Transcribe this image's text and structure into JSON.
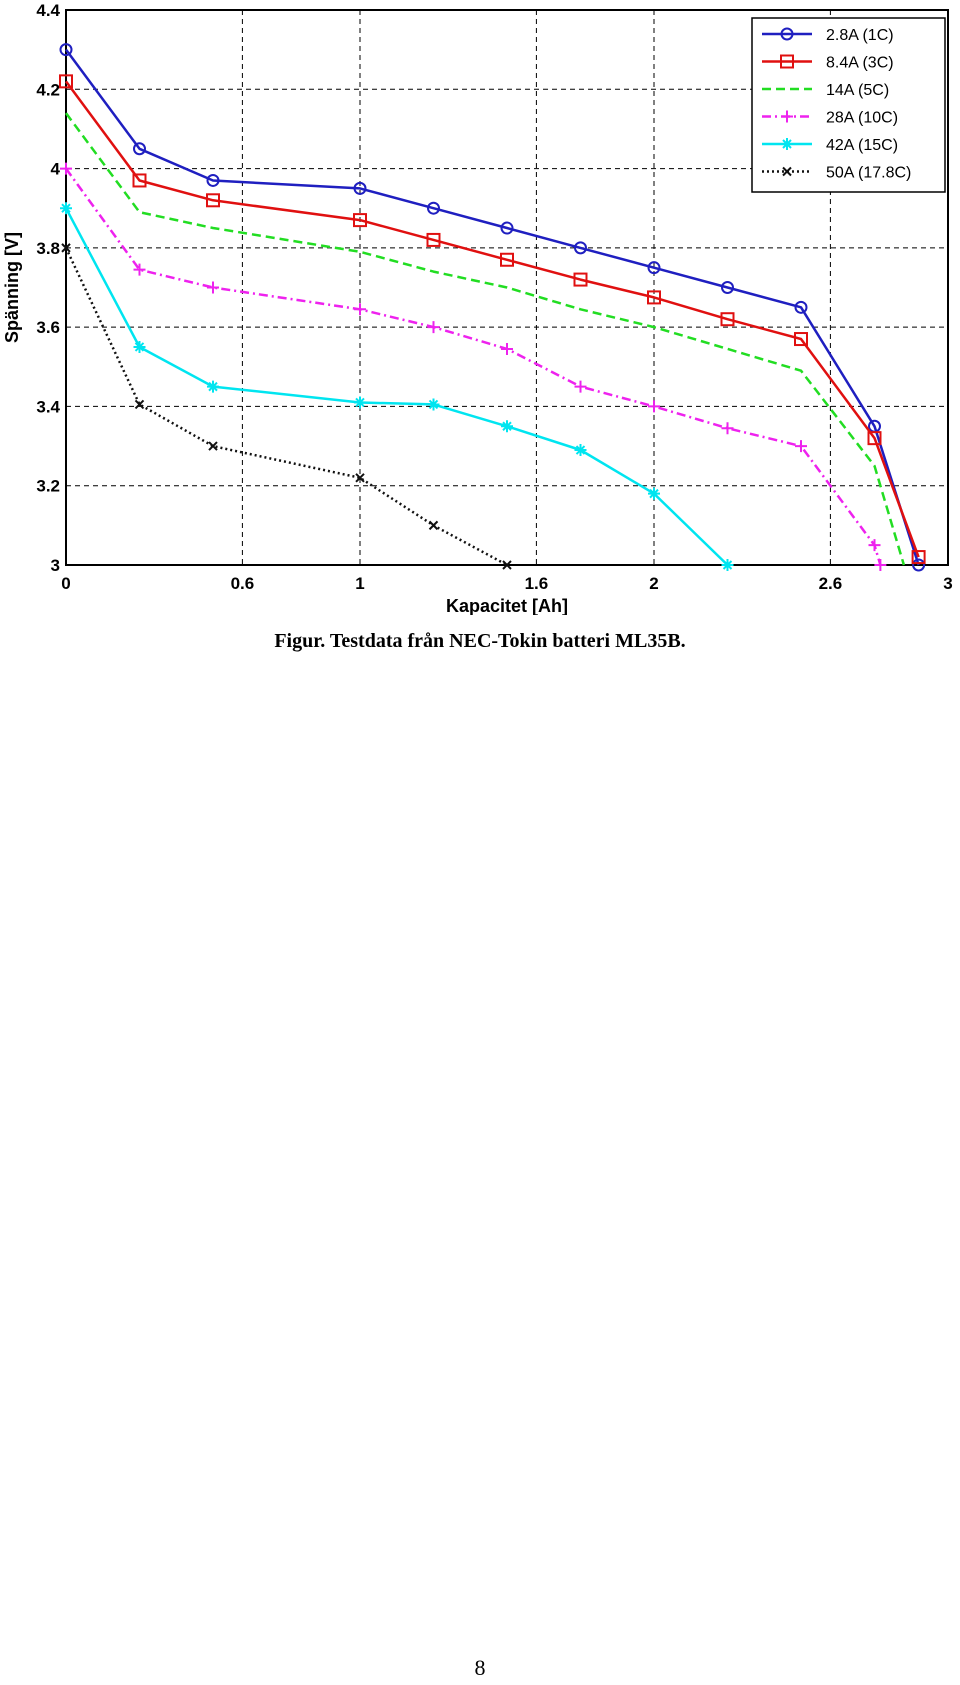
{
  "chart_data": {
    "type": "line",
    "title": "",
    "xlabel": "Kapacitet [Ah]",
    "ylabel": "Spänning [V]",
    "xlim": [
      0,
      3
    ],
    "ylim": [
      3,
      4.4
    ],
    "x_ticks": [
      0,
      0.6,
      1,
      1.6,
      2,
      2.6,
      3
    ],
    "x_tick_labels": [
      "0",
      "0.6",
      "1",
      "1.6",
      "2",
      "2.6",
      "3"
    ],
    "y_ticks": [
      3,
      3.2,
      3.4,
      3.6,
      3.8,
      4,
      4.2,
      4.4
    ],
    "y_tick_labels": [
      "3",
      "3.2",
      "3.4",
      "3.6",
      "3.8",
      "4",
      "4.2",
      "4.4"
    ],
    "grid": true,
    "legend_position": "top-right",
    "series": [
      {
        "name": "2.8A (1C)",
        "color": "#1f1fc0",
        "dash": "solid",
        "marker": "circle",
        "x": [
          0,
          0.25,
          0.5,
          1.0,
          1.25,
          1.5,
          1.75,
          2.0,
          2.25,
          2.5,
          2.75,
          2.9
        ],
        "y": [
          4.3,
          4.05,
          3.97,
          3.95,
          3.9,
          3.85,
          3.8,
          3.75,
          3.7,
          3.65,
          3.35,
          3.0
        ]
      },
      {
        "name": "8.4A (3C)",
        "color": "#e01010",
        "dash": "solid",
        "marker": "square",
        "x": [
          0,
          0.25,
          0.5,
          1.0,
          1.25,
          1.5,
          1.75,
          2.0,
          2.25,
          2.5,
          2.75,
          2.9
        ],
        "y": [
          4.22,
          3.97,
          3.92,
          3.87,
          3.82,
          3.77,
          3.72,
          3.675,
          3.62,
          3.57,
          3.32,
          3.02
        ]
      },
      {
        "name": "14A (5C)",
        "color": "#22dd22",
        "dash": "dashed",
        "marker": "none",
        "x": [
          0,
          0.25,
          0.5,
          1.0,
          1.25,
          1.5,
          1.75,
          2.0,
          2.25,
          2.5,
          2.75,
          2.85
        ],
        "y": [
          4.14,
          3.89,
          3.85,
          3.79,
          3.74,
          3.7,
          3.645,
          3.6,
          3.545,
          3.49,
          3.25,
          3.0
        ]
      },
      {
        "name": "28A (10C)",
        "color": "#ee22ee",
        "dash": "dashdot",
        "marker": "plus",
        "x": [
          0,
          0.25,
          0.5,
          1.0,
          1.25,
          1.5,
          1.75,
          2.0,
          2.25,
          2.5,
          2.75,
          2.77
        ],
        "y": [
          4.0,
          3.745,
          3.7,
          3.645,
          3.6,
          3.545,
          3.45,
          3.4,
          3.345,
          3.3,
          3.05,
          3.0
        ]
      },
      {
        "name": "42A (15C)",
        "color": "#00e5f0",
        "dash": "solid",
        "marker": "star",
        "x": [
          0,
          0.25,
          0.5,
          1.0,
          1.25,
          1.5,
          1.75,
          2.0,
          2.25
        ],
        "y": [
          3.9,
          3.55,
          3.45,
          3.41,
          3.405,
          3.35,
          3.29,
          3.18,
          3.0
        ]
      },
      {
        "name": "50A (17.8C)",
        "color": "#111111",
        "dash": "dotted",
        "marker": "x",
        "x": [
          0,
          0.25,
          0.5,
          1.0,
          1.25,
          1.5
        ],
        "y": [
          3.8,
          3.405,
          3.3,
          3.22,
          3.1,
          3.0
        ]
      }
    ]
  },
  "caption": "Figur. Testdata från NEC-Tokin batteri ML35B.",
  "page_number": "8"
}
